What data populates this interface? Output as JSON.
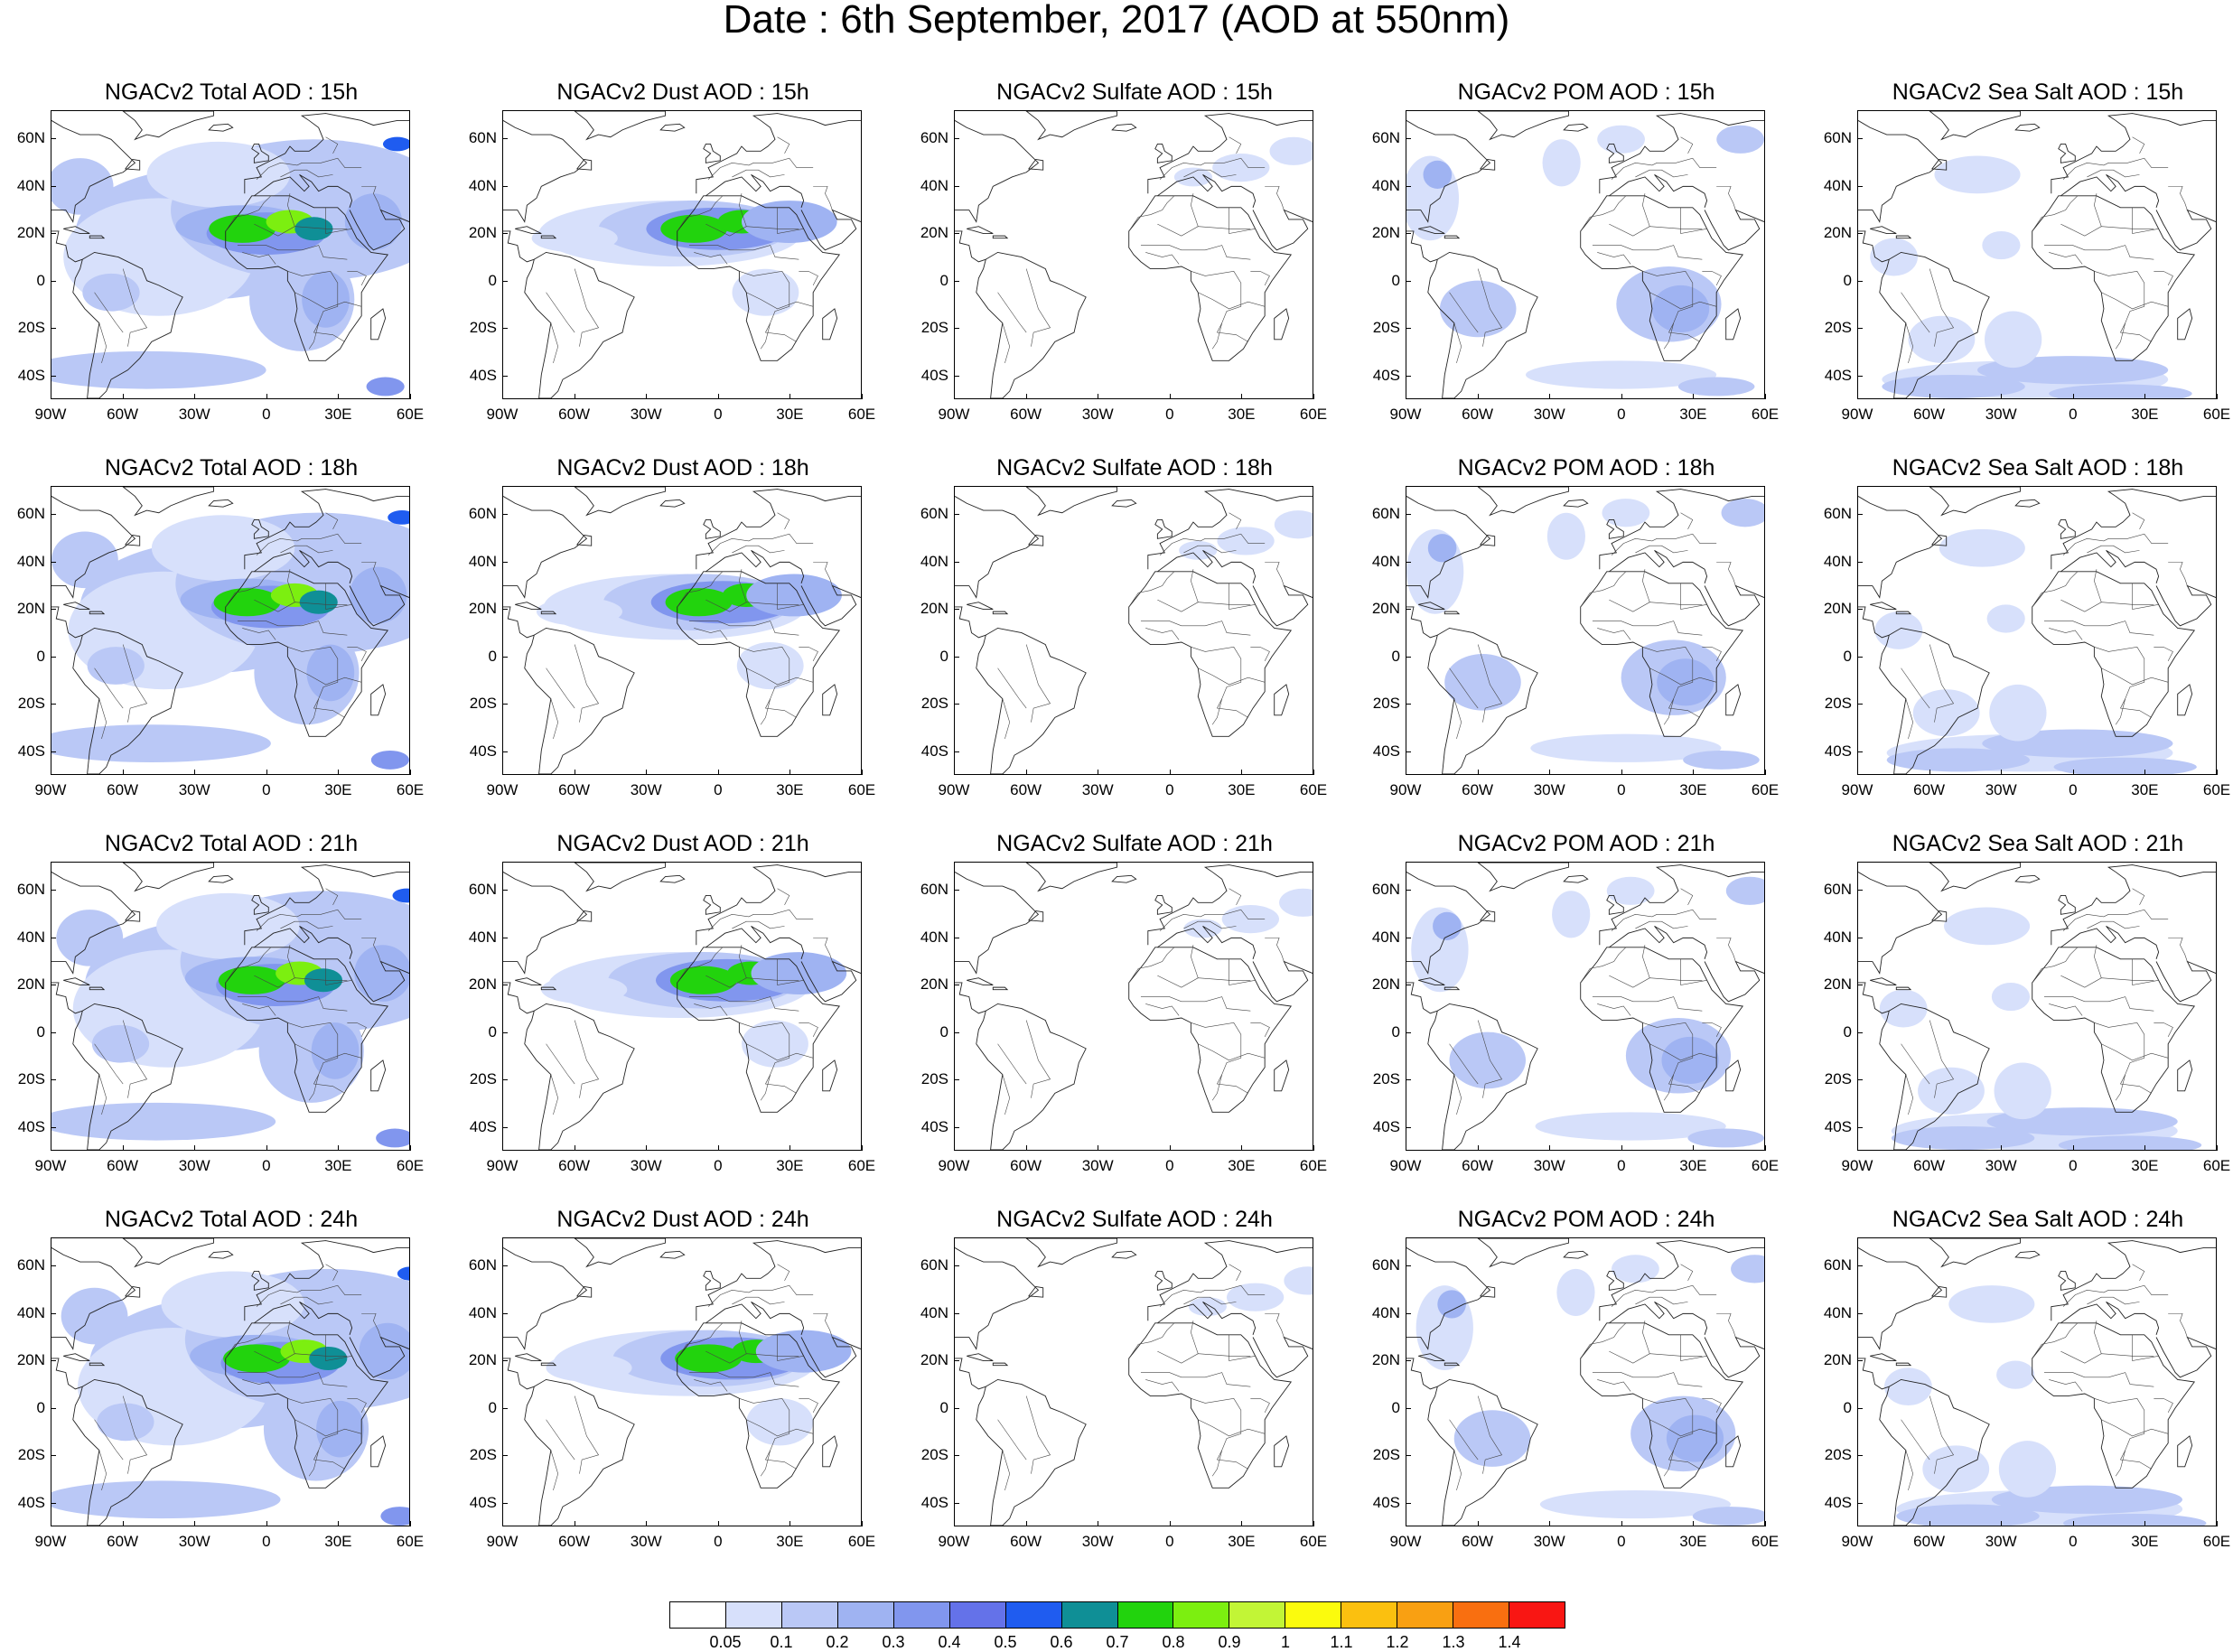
{
  "figure": {
    "title": "Date : 6th September, 2017 (AOD at 550nm)"
  },
  "axes": {
    "lat_labels": [
      "60N",
      "40N",
      "20N",
      "0",
      "20S",
      "40S"
    ],
    "lat_values": [
      60,
      40,
      20,
      0,
      -20,
      -40
    ],
    "lon_labels": [
      "90W",
      "60W",
      "30W",
      "0",
      "30E",
      "60E"
    ],
    "lon_values": [
      -90,
      -60,
      -30,
      0,
      30,
      60
    ],
    "lat_range": [
      -50,
      72
    ],
    "lon_range": [
      -90,
      60
    ]
  },
  "panels": [
    {
      "title": "NGACv2 Total AOD : 15h",
      "species": "total"
    },
    {
      "title": "NGACv2 Dust AOD : 15h",
      "species": "dust"
    },
    {
      "title": "NGACv2 Sulfate AOD : 15h",
      "species": "sulfate"
    },
    {
      "title": "NGACv2 POM AOD : 15h",
      "species": "pom"
    },
    {
      "title": "NGACv2 Sea Salt AOD : 15h",
      "species": "seasalt"
    },
    {
      "title": "NGACv2 Total AOD : 18h",
      "species": "total"
    },
    {
      "title": "NGACv2 Dust AOD : 18h",
      "species": "dust"
    },
    {
      "title": "NGACv2 Sulfate AOD : 18h",
      "species": "sulfate"
    },
    {
      "title": "NGACv2 POM AOD : 18h",
      "species": "pom"
    },
    {
      "title": "NGACv2 Sea Salt AOD : 18h",
      "species": "seasalt"
    },
    {
      "title": "NGACv2 Total AOD : 21h",
      "species": "total"
    },
    {
      "title": "NGACv2 Dust AOD : 21h",
      "species": "dust"
    },
    {
      "title": "NGACv2 Sulfate AOD : 21h",
      "species": "sulfate"
    },
    {
      "title": "NGACv2 POM AOD : 21h",
      "species": "pom"
    },
    {
      "title": "NGACv2 Sea Salt AOD : 21h",
      "species": "seasalt"
    },
    {
      "title": "NGACv2 Total AOD : 24h",
      "species": "total"
    },
    {
      "title": "NGACv2 Dust AOD : 24h",
      "species": "dust"
    },
    {
      "title": "NGACv2 Sulfate AOD : 24h",
      "species": "sulfate"
    },
    {
      "title": "NGACv2 POM AOD : 24h",
      "species": "pom"
    },
    {
      "title": "NGACv2 Sea Salt  AOD : 24h",
      "species": "seasalt"
    }
  ],
  "colorbar": {
    "labels": [
      "0.05",
      "0.1",
      "0.2",
      "0.3",
      "0.4",
      "0.5",
      "0.6",
      "0.7",
      "0.8",
      "0.9",
      "1",
      "1.1",
      "1.2",
      "1.3",
      "1.4"
    ],
    "colors": [
      "#ffffff",
      "#d7e0fb",
      "#bac8f6",
      "#9fb3f2",
      "#8196ee",
      "#6472e9",
      "#1f5cf0",
      "#0f8f96",
      "#22d30d",
      "#7cef10",
      "#c2f536",
      "#fbfb0d",
      "#fbc00f",
      "#f9a012",
      "#f96f10",
      "#f91613"
    ]
  }
}
